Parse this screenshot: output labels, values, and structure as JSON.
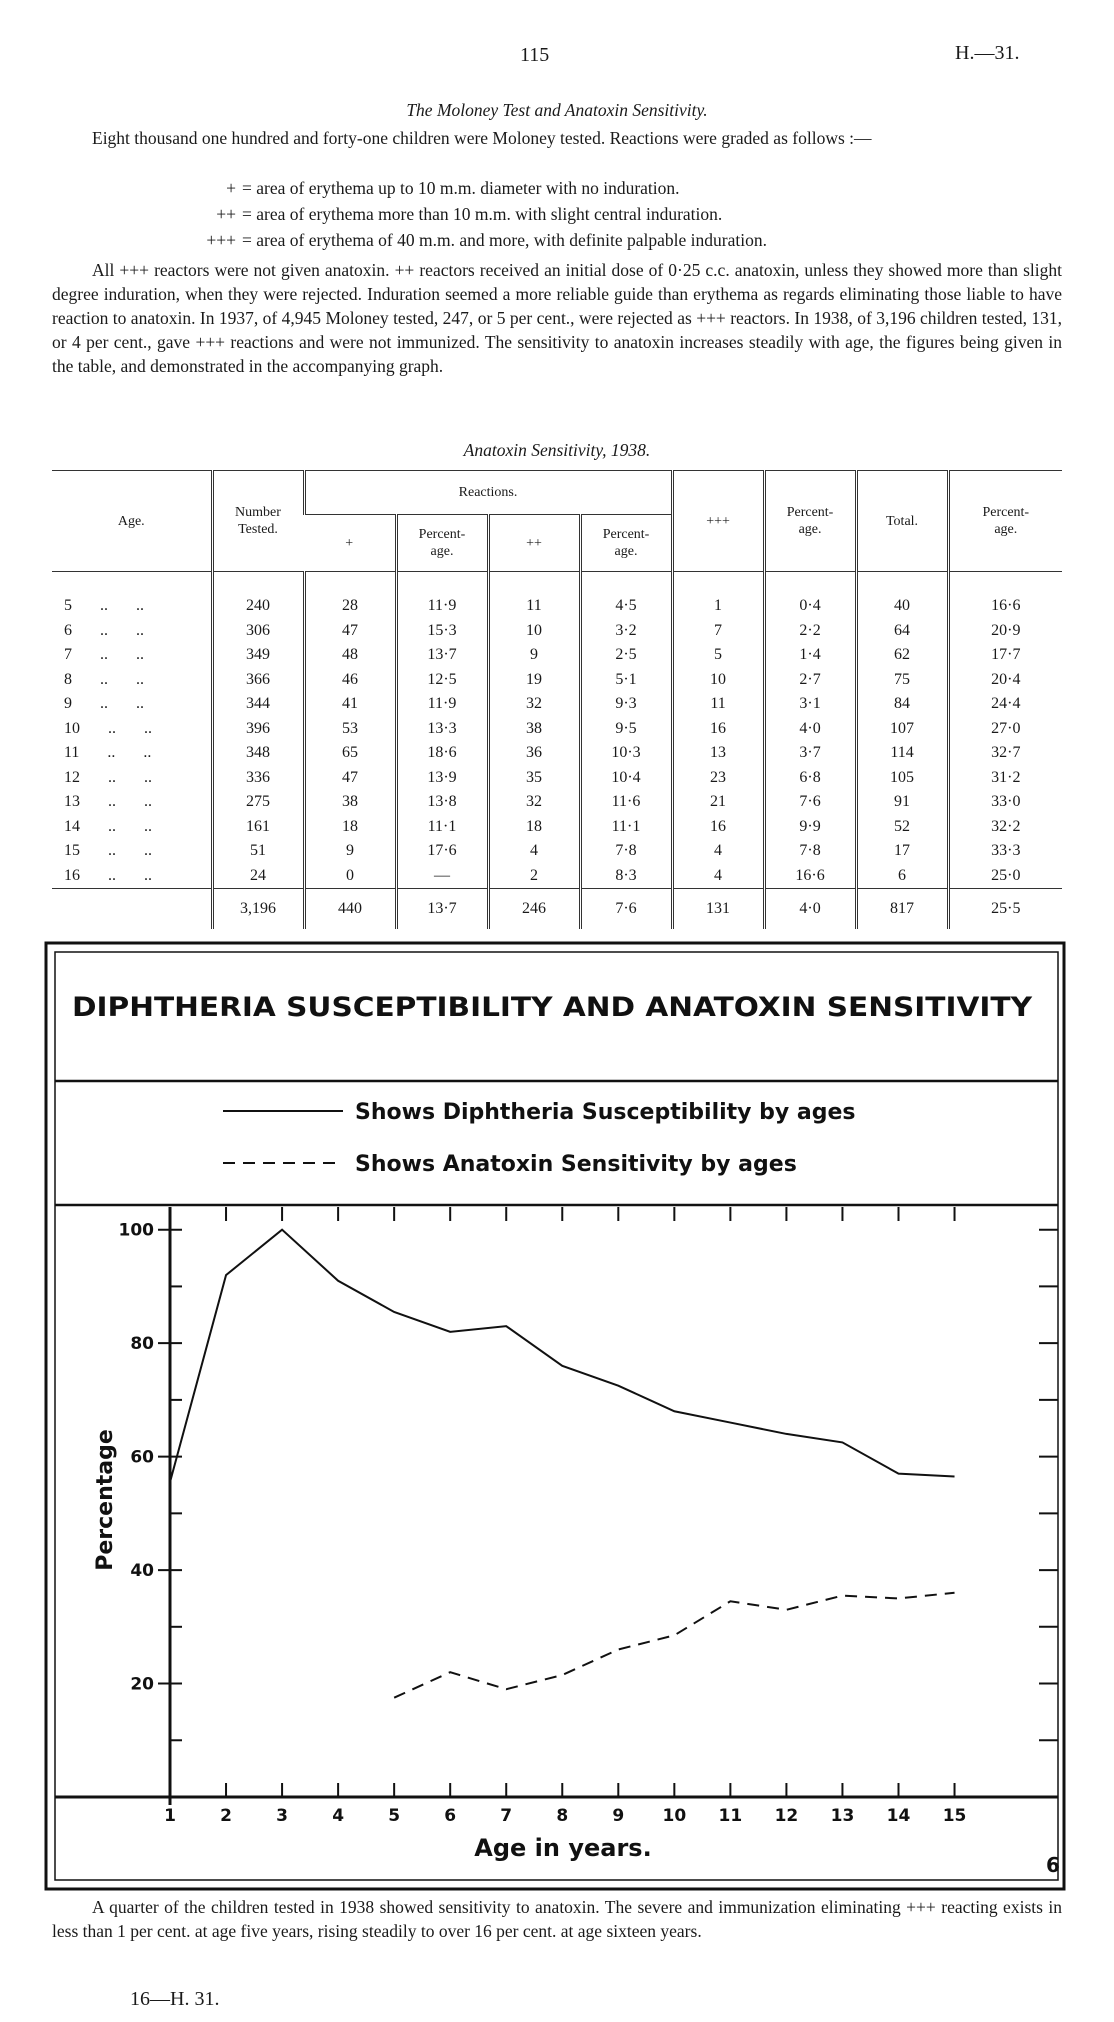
{
  "header": {
    "page_number": "115",
    "reference": "H.—31."
  },
  "section_title": "The Moloney Test and Anatoxin Sensitivity.",
  "paragraph_1": "Eight thousand one hundred and forty-one children were Moloney tested.  Reactions were graded as follows :—",
  "grading": [
    {
      "symbol": "+",
      "text": "= area of erythema up to 10 m.m. diameter with no induration."
    },
    {
      "symbol": "++",
      "text": "= area of erythema more than 10 m.m. with slight central induration."
    },
    {
      "symbol": "+++",
      "text": "= area of erythema of 40 m.m. and more, with definite palpable induration."
    }
  ],
  "paragraph_2": "All +++ reactors were not given anatoxin.  ++ reactors received an initial dose of 0·25 c.c. anatoxin, unless they showed more than slight degree induration, when they were rejected.  Induration seemed a more reliable guide than erythema as regards eliminating those liable to have reaction to anatoxin.  In 1937, of 4,945 Moloney tested, 247, or 5 per cent., were rejected as +++ reactors. In 1938, of 3,196 children tested, 131, or 4 per cent., gave +++ reactions and were not immunized. The sensitivity to anatoxin increases steadily with age, the figures being given in the table, and demonstrated in the accompanying graph.",
  "table": {
    "caption": "Anatoxin Sensitivity, 1938.",
    "group_header": "Reactions.",
    "columns": [
      "Age.",
      "Number\nTested.",
      "+",
      "Percent-\nage.",
      "++",
      "Percent-\nage.",
      "+++",
      "Percent-\nage.",
      "Total.",
      "Percent-\nage."
    ],
    "rows": [
      [
        "5 .. ..",
        "240",
        "28",
        "11·9",
        "11",
        "4·5",
        "1",
        "0·4",
        "40",
        "16·6"
      ],
      [
        "6 .. ..",
        "306",
        "47",
        "15·3",
        "10",
        "3·2",
        "7",
        "2·2",
        "64",
        "20·9"
      ],
      [
        "7 .. ..",
        "349",
        "48",
        "13·7",
        "9",
        "2·5",
        "5",
        "1·4",
        "62",
        "17·7"
      ],
      [
        "8 .. ..",
        "366",
        "46",
        "12·5",
        "19",
        "5·1",
        "10",
        "2·7",
        "75",
        "20·4"
      ],
      [
        "9 .. ..",
        "344",
        "41",
        "11·9",
        "32",
        "9·3",
        "11",
        "3·1",
        "84",
        "24·4"
      ],
      [
        "10 .. ..",
        "396",
        "53",
        "13·3",
        "38",
        "9·5",
        "16",
        "4·0",
        "107",
        "27·0"
      ],
      [
        "11 .. ..",
        "348",
        "65",
        "18·6",
        "36",
        "10·3",
        "13",
        "3·7",
        "114",
        "32·7"
      ],
      [
        "12 .. ..",
        "336",
        "47",
        "13·9",
        "35",
        "10·4",
        "23",
        "6·8",
        "105",
        "31·2"
      ],
      [
        "13 .. ..",
        "275",
        "38",
        "13·8",
        "32",
        "11·6",
        "21",
        "7·6",
        "91",
        "33·0"
      ],
      [
        "14 .. ..",
        "161",
        "18",
        "11·1",
        "18",
        "11·1",
        "16",
        "9·9",
        "52",
        "32·2"
      ],
      [
        "15 .. ..",
        "51",
        "9",
        "17·6",
        "4",
        "7·8",
        "4",
        "7·8",
        "17",
        "33·3"
      ],
      [
        "16 .. ..",
        "24",
        "0",
        "—",
        "2",
        "8·3",
        "4",
        "16·6",
        "6",
        "25·0"
      ]
    ],
    "totals": [
      "3,196",
      "440",
      "13·7",
      "246",
      "7·6",
      "131",
      "4·0",
      "817",
      "25·5"
    ]
  },
  "chart_data": {
    "type": "line",
    "title": "DIPHTHERIA SUSCEPTIBILITY AND ANATOXIN SENSITIVITY",
    "x": [
      1,
      2,
      3,
      4,
      5,
      6,
      7,
      8,
      9,
      10,
      11,
      12,
      13,
      14,
      15
    ],
    "series": [
      {
        "name": "Shows Diphtheria Susceptibility by ages",
        "color": "#111111",
        "style": "solid",
        "values": [
          55.5,
          92,
          100,
          91,
          85.5,
          82,
          83,
          76,
          72.5,
          68,
          66,
          64,
          62.5,
          57,
          56.5
        ]
      },
      {
        "name": "Shows Anatoxin Sensitivity by ages",
        "color": "#111111",
        "style": "dashed",
        "values": [
          null,
          null,
          null,
          null,
          17.5,
          22,
          19,
          21.5,
          26,
          28.5,
          34.5,
          33,
          35.5,
          35,
          36
        ]
      }
    ],
    "xlim": [
      1,
      16.9
    ],
    "ylim": [
      0,
      104
    ],
    "xticks": [
      1,
      2,
      3,
      4,
      5,
      6,
      7,
      8,
      9,
      10,
      11,
      12,
      13,
      14,
      15
    ],
    "yticks": [
      20,
      40,
      60,
      80,
      100
    ],
    "yticks_minor": [
      10,
      30,
      50,
      70,
      90
    ],
    "y_label": "Percentage",
    "x_label": "Age in years.",
    "figure_number": "6",
    "grid": false
  },
  "footer": {
    "paragraph": "A quarter of the children tested in 1938 showed sensitivity to anatoxin.  The severe and immunization eliminating +++ reacting exists in less than 1 per cent. at age five years, rising steadily to over 16 per cent. at age sixteen years.",
    "signature": "16—H. 31."
  }
}
